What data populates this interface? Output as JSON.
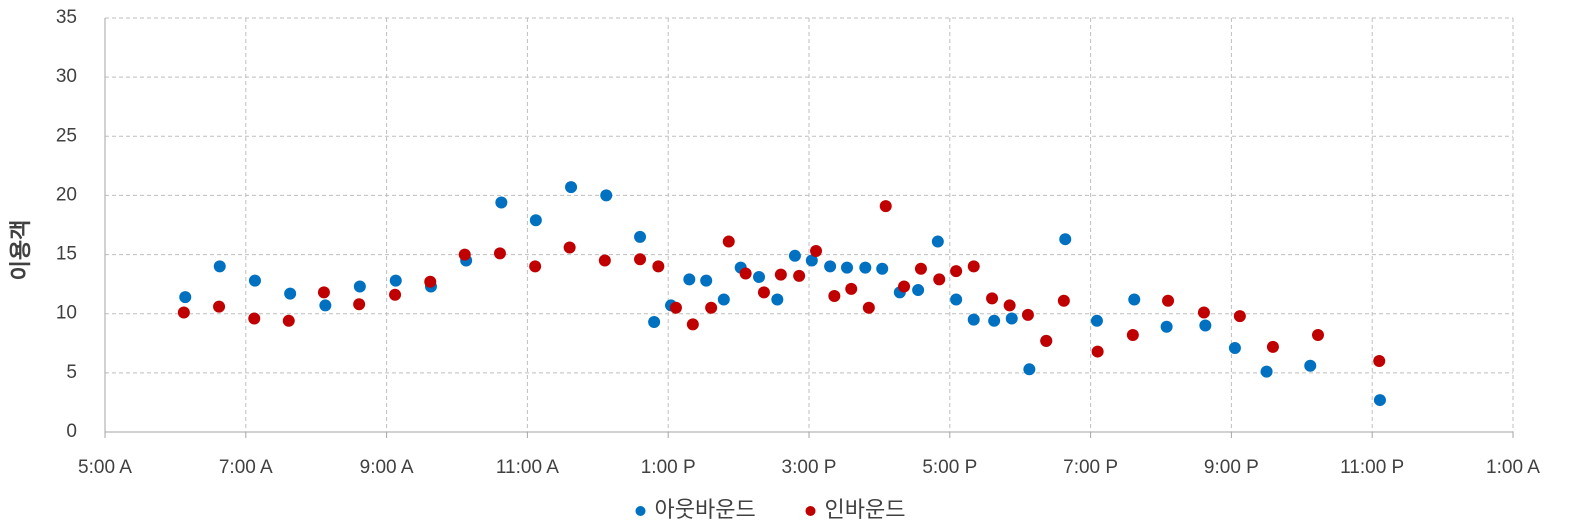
{
  "chart_data": {
    "type": "scatter",
    "y_label": "이용객",
    "xlim": [
      5,
      25
    ],
    "ylim": [
      0,
      35
    ],
    "xticks": [
      {
        "value": 5,
        "label": "5:00 A"
      },
      {
        "value": 7,
        "label": "7:00 A"
      },
      {
        "value": 9,
        "label": "9:00 A"
      },
      {
        "value": 11,
        "label": "11:00 A"
      },
      {
        "value": 13,
        "label": "1:00 P"
      },
      {
        "value": 15,
        "label": "3:00 P"
      },
      {
        "value": 17,
        "label": "5:00 P"
      },
      {
        "value": 19,
        "label": "7:00 P"
      },
      {
        "value": 21,
        "label": "9:00 P"
      },
      {
        "value": 23,
        "label": "11:00 P"
      },
      {
        "value": 25,
        "label": "1:00 A"
      }
    ],
    "yticks": [
      0,
      5,
      10,
      15,
      20,
      25,
      30,
      35
    ],
    "grid": true,
    "legend": "bottom",
    "series": [
      {
        "name": "아웃바운드",
        "color": "#0070c0",
        "x": [
          6.14,
          6.63,
          7.13,
          7.63,
          8.13,
          8.62,
          9.13,
          9.63,
          10.13,
          10.63,
          11.12,
          11.62,
          12.12,
          12.6,
          12.8,
          13.04,
          13.3,
          13.54,
          13.79,
          14.03,
          14.29,
          14.55,
          14.8,
          15.04,
          15.3,
          15.54,
          15.8,
          16.04,
          16.29,
          16.55,
          16.83,
          17.09,
          17.34,
          17.63,
          17.88,
          18.13,
          18.37,
          18.64,
          19.09,
          19.62,
          20.08,
          20.63,
          21.05,
          21.5,
          22.12,
          23.11
        ],
        "values": [
          11.4,
          14.0,
          12.8,
          11.7,
          10.7,
          12.3,
          12.8,
          12.3,
          14.5,
          19.4,
          17.9,
          20.7,
          20.0,
          16.5,
          9.3,
          10.7,
          12.9,
          12.8,
          11.2,
          13.9,
          13.1,
          11.2,
          14.9,
          14.5,
          14.0,
          13.9,
          13.9,
          13.8,
          11.8,
          12.0,
          16.1,
          11.2,
          9.5,
          9.4,
          9.6,
          5.3,
          7.7,
          16.3,
          9.4,
          11.2,
          8.9,
          9.0,
          7.1,
          5.1,
          5.6,
          2.7
        ]
      },
      {
        "name": "인바운드",
        "color": "#c00000",
        "x": [
          6.12,
          6.62,
          7.12,
          7.61,
          8.11,
          8.61,
          9.12,
          9.62,
          10.11,
          10.61,
          11.11,
          11.6,
          12.1,
          12.6,
          12.86,
          13.11,
          13.35,
          13.61,
          13.86,
          14.1,
          14.36,
          14.6,
          14.86,
          15.1,
          15.36,
          15.6,
          15.85,
          16.09,
          16.35,
          16.59,
          16.85,
          17.09,
          17.34,
          17.6,
          17.85,
          18.11,
          18.37,
          18.62,
          19.1,
          19.6,
          20.1,
          20.61,
          21.12,
          21.59,
          22.23,
          23.1
        ],
        "values": [
          10.1,
          10.6,
          9.6,
          9.4,
          11.8,
          10.8,
          11.6,
          12.7,
          15.0,
          15.1,
          14.0,
          15.6,
          14.5,
          14.6,
          14.0,
          10.5,
          9.1,
          10.5,
          16.1,
          13.4,
          11.8,
          13.3,
          13.2,
          15.3,
          11.5,
          12.1,
          10.5,
          19.1,
          12.3,
          13.8,
          12.9,
          13.6,
          14.0,
          11.3,
          10.7,
          9.9,
          7.7,
          11.1,
          6.8,
          8.2,
          11.1,
          10.1,
          9.8,
          7.2,
          8.2,
          6.0
        ]
      }
    ]
  }
}
